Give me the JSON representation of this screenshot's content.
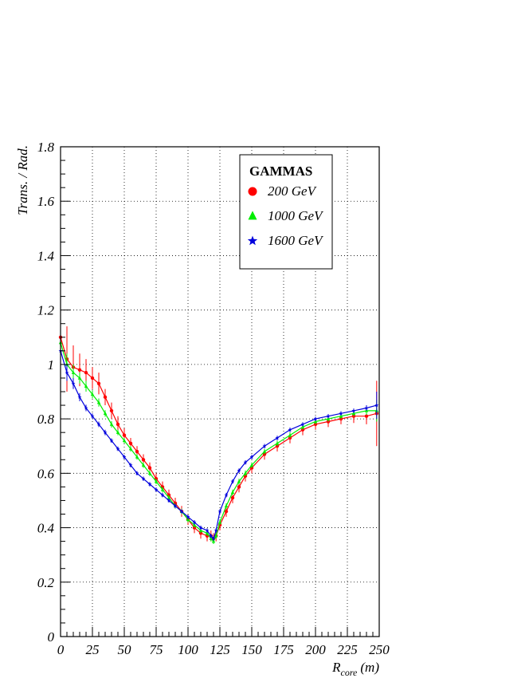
{
  "chart_data": {
    "type": "scatter",
    "title": "",
    "xlabel_main": "R",
    "xlabel_sub": "core",
    "xlabel_unit": "(m)",
    "ylabel": "Trans. / Rad.",
    "xlim": [
      0,
      250
    ],
    "ylim": [
      0,
      1.8
    ],
    "grid": true,
    "legend_placement": "top-center",
    "x_ticks": [
      0,
      25,
      50,
      75,
      100,
      125,
      150,
      175,
      200,
      225,
      250
    ],
    "x_tick_labels": [
      "0",
      "25",
      "50",
      "75",
      "100",
      "125",
      "150",
      "175",
      "200",
      "225",
      "250"
    ],
    "y_ticks": [
      0,
      0.2,
      0.4,
      0.6,
      0.8,
      1,
      1.2,
      1.4,
      1.6,
      1.8
    ],
    "y_tick_labels": [
      "0",
      "0.2",
      "0.4",
      "0.6",
      "0.8",
      "1",
      "1.2",
      "1.4",
      "1.6",
      "1.8"
    ],
    "legend_title": "GAMMAS",
    "series": [
      {
        "name": "200 GeV",
        "color": "#ff0000",
        "marker": "circle",
        "x": [
          0,
          5,
          10,
          15,
          20,
          25,
          30,
          35,
          40,
          45,
          50,
          55,
          60,
          65,
          70,
          75,
          80,
          85,
          90,
          95,
          100,
          105,
          110,
          115,
          118,
          120,
          122,
          125,
          130,
          135,
          140,
          145,
          150,
          160,
          170,
          180,
          190,
          200,
          210,
          220,
          230,
          240,
          248
        ],
        "y": [
          1.1,
          1.02,
          0.99,
          0.98,
          0.97,
          0.95,
          0.93,
          0.88,
          0.83,
          0.78,
          0.74,
          0.71,
          0.68,
          0.65,
          0.62,
          0.58,
          0.55,
          0.52,
          0.49,
          0.46,
          0.43,
          0.4,
          0.38,
          0.37,
          0.37,
          0.36,
          0.37,
          0.41,
          0.46,
          0.51,
          0.55,
          0.59,
          0.62,
          0.67,
          0.7,
          0.73,
          0.76,
          0.78,
          0.79,
          0.8,
          0.81,
          0.81,
          0.82
        ],
        "err": [
          0.3,
          0.12,
          0.08,
          0.06,
          0.05,
          0.04,
          0.04,
          0.03,
          0.03,
          0.03,
          0.025,
          0.02,
          0.02,
          0.02,
          0.02,
          0.02,
          0.02,
          0.02,
          0.02,
          0.02,
          0.02,
          0.02,
          0.02,
          0.02,
          0.02,
          0.02,
          0.02,
          0.02,
          0.02,
          0.02,
          0.02,
          0.02,
          0.02,
          0.02,
          0.02,
          0.02,
          0.02,
          0.02,
          0.02,
          0.02,
          0.025,
          0.03,
          0.12
        ]
      },
      {
        "name": "1000 GeV",
        "color": "#00ee00",
        "marker": "triangle",
        "x": [
          0,
          5,
          10,
          15,
          20,
          25,
          30,
          35,
          40,
          45,
          50,
          55,
          60,
          65,
          70,
          75,
          80,
          85,
          90,
          95,
          100,
          105,
          110,
          115,
          118,
          120,
          122,
          125,
          130,
          135,
          140,
          145,
          150,
          160,
          170,
          180,
          190,
          200,
          210,
          220,
          230,
          240,
          248
        ],
        "y": [
          1.08,
          1.0,
          0.97,
          0.95,
          0.92,
          0.89,
          0.86,
          0.82,
          0.78,
          0.75,
          0.72,
          0.69,
          0.66,
          0.63,
          0.6,
          0.57,
          0.54,
          0.51,
          0.48,
          0.46,
          0.43,
          0.41,
          0.39,
          0.38,
          0.36,
          0.35,
          0.37,
          0.42,
          0.48,
          0.53,
          0.57,
          0.6,
          0.63,
          0.68,
          0.71,
          0.74,
          0.77,
          0.79,
          0.8,
          0.81,
          0.82,
          0.83,
          0.83
        ],
        "err": [
          0.08,
          0.04,
          0.03,
          0.02,
          0.02,
          0.015,
          0.015,
          0.012,
          0.012,
          0.01,
          0.01,
          0.01,
          0.01,
          0.01,
          0.01,
          0.01,
          0.01,
          0.01,
          0.01,
          0.01,
          0.01,
          0.01,
          0.01,
          0.01,
          0.01,
          0.01,
          0.01,
          0.01,
          0.01,
          0.01,
          0.01,
          0.01,
          0.01,
          0.01,
          0.01,
          0.01,
          0.01,
          0.01,
          0.01,
          0.01,
          0.01,
          0.015,
          0.04
        ]
      },
      {
        "name": "1600 GeV",
        "color": "#0000dd",
        "marker": "star",
        "x": [
          0,
          5,
          10,
          15,
          20,
          25,
          30,
          35,
          40,
          45,
          50,
          55,
          60,
          65,
          70,
          75,
          80,
          85,
          90,
          95,
          100,
          105,
          110,
          115,
          118,
          120,
          122,
          125,
          130,
          135,
          140,
          145,
          150,
          160,
          170,
          180,
          190,
          200,
          210,
          220,
          230,
          240,
          248
        ],
        "y": [
          1.05,
          0.97,
          0.93,
          0.88,
          0.84,
          0.81,
          0.78,
          0.75,
          0.72,
          0.69,
          0.66,
          0.63,
          0.6,
          0.58,
          0.56,
          0.54,
          0.52,
          0.5,
          0.48,
          0.46,
          0.44,
          0.42,
          0.4,
          0.39,
          0.37,
          0.36,
          0.39,
          0.46,
          0.52,
          0.57,
          0.61,
          0.64,
          0.66,
          0.7,
          0.73,
          0.76,
          0.78,
          0.8,
          0.81,
          0.82,
          0.83,
          0.84,
          0.85
        ],
        "err": [
          0.06,
          0.03,
          0.02,
          0.015,
          0.012,
          0.01,
          0.01,
          0.01,
          0.008,
          0.008,
          0.008,
          0.008,
          0.008,
          0.008,
          0.008,
          0.008,
          0.008,
          0.008,
          0.008,
          0.008,
          0.008,
          0.008,
          0.008,
          0.008,
          0.008,
          0.008,
          0.008,
          0.008,
          0.008,
          0.008,
          0.008,
          0.008,
          0.008,
          0.008,
          0.008,
          0.008,
          0.008,
          0.008,
          0.008,
          0.008,
          0.008,
          0.01,
          0.05
        ]
      }
    ]
  }
}
